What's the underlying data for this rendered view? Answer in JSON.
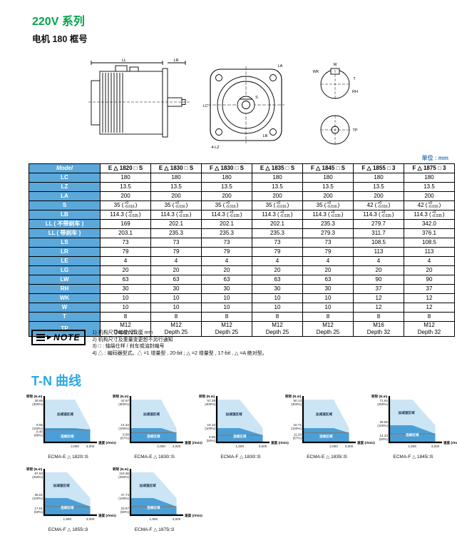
{
  "page": {
    "title_series": "220V 系列",
    "title_frame": "电机 180 框号",
    "unit_label": "单位 : mm"
  },
  "drawing": {
    "dim_labels": {
      "ll": "LL",
      "lr": "LR",
      "lc": "LC",
      "la": "LA",
      "lb": "LB",
      "s": "S",
      "lz": "4-LZ",
      "w": "W",
      "wk": "WK",
      "t": "T",
      "rh": "RH",
      "tp": "TP"
    }
  },
  "table": {
    "header_label": "Model",
    "models": [
      "E △ 1820 □ S",
      "E △ 1830 □ S",
      "F △ 1830 □ S",
      "E △ 1835 □ S",
      "F △ 1845 □ S",
      "F △ 1855 □ 3",
      "F △ 1875 □ 3"
    ],
    "rows": [
      {
        "label": "LC",
        "cells": [
          "180",
          "180",
          "180",
          "180",
          "180",
          "180",
          "180"
        ]
      },
      {
        "label": "LZ",
        "cells": [
          "13.5",
          "13.5",
          "13.5",
          "13.5",
          "13.5",
          "13.5",
          "13.5"
        ]
      },
      {
        "label": "LA",
        "cells": [
          "200",
          "200",
          "200",
          "200",
          "200",
          "200",
          "200"
        ]
      },
      {
        "label": "S",
        "cells": [
          {
            "main": "35",
            "top": "+0",
            "bot": "-0.016"
          },
          {
            "main": "35",
            "top": "+0",
            "bot": "-0.016"
          },
          {
            "main": "35",
            "top": "+0",
            "bot": "-0.016"
          },
          {
            "main": "35",
            "top": "+0",
            "bot": "-0.016"
          },
          {
            "main": "35",
            "top": "+0",
            "bot": "-0.016"
          },
          {
            "main": "42",
            "top": "+0",
            "bot": "-0.016"
          },
          {
            "main": "42",
            "top": "+0",
            "bot": "-0.016"
          }
        ]
      },
      {
        "label": "LB",
        "cells": [
          {
            "main": "114.3",
            "top": "+0",
            "bot": "-0.035"
          },
          {
            "main": "114.3",
            "top": "+0",
            "bot": "-0.035"
          },
          {
            "main": "114.3",
            "top": "+0",
            "bot": "-0.035"
          },
          {
            "main": "114.3",
            "top": "+0",
            "bot": "-0.035"
          },
          {
            "main": "114.3",
            "top": "+0",
            "bot": "-0.035"
          },
          {
            "main": "114.3",
            "top": "+0",
            "bot": "-0.035"
          },
          {
            "main": "114.3",
            "top": "+0",
            "bot": "-0.035"
          }
        ]
      },
      {
        "label": "LL ( 不带刹车 )",
        "cells": [
          "169",
          "202.1",
          "202.1",
          "202.1",
          "235.3",
          "279.7",
          "342.0"
        ]
      },
      {
        "label": "LL ( 带刹车 )",
        "cells": [
          "203.1",
          "235.3",
          "235.3",
          "235.3",
          "279.3",
          "311.7",
          "376.1"
        ]
      },
      {
        "label": "LS",
        "cells": [
          "73",
          "73",
          "73",
          "73",
          "73",
          "108.5",
          "108.5"
        ]
      },
      {
        "label": "LR",
        "cells": [
          "79",
          "79",
          "79",
          "79",
          "79",
          "113",
          "113"
        ]
      },
      {
        "label": "LE",
        "cells": [
          "4",
          "4",
          "4",
          "4",
          "4",
          "4",
          "4"
        ]
      },
      {
        "label": "LG",
        "cells": [
          "20",
          "20",
          "20",
          "20",
          "20",
          "20",
          "20"
        ]
      },
      {
        "label": "LW",
        "cells": [
          "63",
          "63",
          "63",
          "63",
          "63",
          "90",
          "90"
        ]
      },
      {
        "label": "RH",
        "cells": [
          "30",
          "30",
          "30",
          "30",
          "30",
          "37",
          "37"
        ]
      },
      {
        "label": "WK",
        "cells": [
          "10",
          "10",
          "10",
          "10",
          "10",
          "12",
          "12"
        ]
      },
      {
        "label": "W",
        "cells": [
          "10",
          "10",
          "10",
          "10",
          "10",
          "12",
          "12"
        ]
      },
      {
        "label": "T",
        "cells": [
          "8",
          "8",
          "8",
          "8",
          "8",
          "8",
          "8"
        ]
      },
      {
        "label": "TP",
        "cells": [
          {
            "lines": [
              "M12",
              "Depth 25"
            ]
          },
          {
            "lines": [
              "M12",
              "Depth 25"
            ]
          },
          {
            "lines": [
              "M12",
              "Depth 25"
            ]
          },
          {
            "lines": [
              "M12",
              "Depth 25"
            ]
          },
          {
            "lines": [
              "M12",
              "Depth 25"
            ]
          },
          {
            "lines": [
              "M16",
              "Depth 32"
            ]
          },
          {
            "lines": [
              "M12",
              "Depth 32"
            ]
          }
        ]
      }
    ]
  },
  "note": {
    "label": "NOTE",
    "lines": [
      "1) 机构尺寸单位为公厘 mm",
      "2) 机构尺寸及重量变更恕不另行通知",
      "3) □ : 轴端仕样 / 刹车或油封编号",
      "4) △ : 编码器型式。△ =1 增量型 , 20-bit ; △ =2 增量型 , 17-bit , △ =A 绝对型。"
    ]
  },
  "tn_section": {
    "title": "T-N 曲线"
  },
  "chart_data": {
    "type": "area",
    "ylabel": "转矩 (N.m)",
    "xlabel": "速度 (r/min)",
    "zone_labels": {
      "accel": "加减速区域",
      "cont": "连续区域"
    },
    "colors": {
      "light_zone": "#CBE5F5",
      "dark_zone": "#4C9FD6",
      "limit_line": "#777777"
    },
    "charts": [
      {
        "caption": "ECMA-E △ 1820□S",
        "max_torque": 28.65,
        "max_pct": "(300%)",
        "rated_torque": 9.55,
        "rated_pct": "(100%)",
        "cont_torque": 8.4,
        "cont_pct": "(88%)",
        "corner_speed": 2000,
        "max_speed": 3000,
        "x_ticks": [
          "2,000",
          "3,000"
        ]
      },
      {
        "caption": "ECMA-E △ 1830□S",
        "max_torque": 42.97,
        "max_pct": "(300%)",
        "rated_torque": 14.32,
        "rated_pct": "(100%)",
        "cont_torque": 9.59,
        "cont_pct": "(67%)",
        "corner_speed": 2000,
        "max_speed": 3000,
        "x_ticks": [
          "2,000",
          "3,000"
        ]
      },
      {
        "caption": "ECMA-F △ 1830□S",
        "max_torque": 57.29,
        "max_pct": "(300%)",
        "rated_torque": 19.1,
        "rated_pct": "(100%)",
        "cont_torque": 9.55,
        "cont_pct": "(50%)",
        "corner_speed": 1500,
        "max_speed": 3000,
        "x_ticks": [
          "1,500",
          "3,000"
        ]
      },
      {
        "caption": "ECMA-E △ 1835□S",
        "max_torque": 50.13,
        "max_pct": "(300%)",
        "rated_torque": 16.71,
        "rated_pct": "(100%)",
        "cont_torque": 11.2,
        "cont_pct": "(67%)",
        "corner_speed": 2000,
        "max_speed": 3000,
        "x_ticks": [
          "2,000",
          "3,000"
        ]
      },
      {
        "caption": "ECMA-F △ 1845□S",
        "max_torque": 71.62,
        "max_pct": "(250%)",
        "rated_torque": 28.65,
        "rated_pct": "(100%)",
        "cont_torque": 14.33,
        "cont_pct": "(50%)",
        "corner_speed": 1500,
        "max_speed": 3000,
        "x_ticks": [
          "1,500",
          "3,000"
        ]
      },
      {
        "caption": "ECMA-F △ 1855□3",
        "max_torque": 87.53,
        "max_pct": "(250%)",
        "rated_torque": 35.01,
        "rated_pct": "(100%)",
        "cont_torque": 17.51,
        "cont_pct": "(50%)",
        "corner_speed": 1500,
        "max_speed": 3000,
        "x_ticks": [
          "1,500",
          "3,000"
        ]
      },
      {
        "caption": "ECMA-F △ 1875□3",
        "max_torque": 119.36,
        "max_pct": "(250%)",
        "rated_torque": 47.74,
        "rated_pct": "(100%)",
        "cont_torque": 23.87,
        "cont_pct": "(50%)",
        "corner_speed": 1500,
        "max_speed": 3000,
        "x_ticks": [
          "1,500",
          "3,000"
        ]
      }
    ]
  }
}
